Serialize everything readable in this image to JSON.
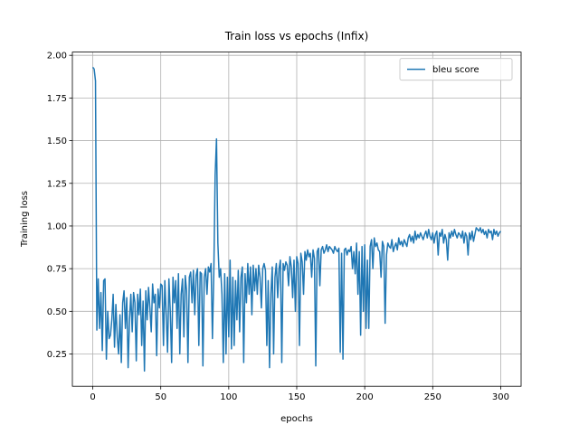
{
  "chart_data": {
    "type": "line",
    "title": "Train loss vs epochs (Infix)",
    "xlabel": "epochs",
    "ylabel": "Training loss",
    "x": [
      0,
      1,
      2,
      3,
      4,
      5,
      6,
      7,
      8,
      9,
      10,
      11,
      12,
      13,
      14,
      15,
      16,
      17,
      18,
      19,
      20,
      21,
      22,
      23,
      24,
      25,
      26,
      27,
      28,
      29,
      30,
      31,
      32,
      33,
      34,
      35,
      36,
      37,
      38,
      39,
      40,
      41,
      42,
      43,
      44,
      45,
      46,
      47,
      48,
      49,
      50,
      51,
      52,
      53,
      54,
      55,
      56,
      57,
      58,
      59,
      60,
      61,
      62,
      63,
      64,
      65,
      66,
      67,
      68,
      69,
      70,
      71,
      72,
      73,
      74,
      75,
      76,
      77,
      78,
      79,
      80,
      81,
      82,
      83,
      84,
      85,
      86,
      87,
      88,
      89,
      90,
      91,
      92,
      93,
      94,
      95,
      96,
      97,
      98,
      99,
      100,
      101,
      102,
      103,
      104,
      105,
      106,
      107,
      108,
      109,
      110,
      111,
      112,
      113,
      114,
      115,
      116,
      117,
      118,
      119,
      120,
      121,
      122,
      123,
      124,
      125,
      126,
      127,
      128,
      129,
      130,
      131,
      132,
      133,
      134,
      135,
      136,
      137,
      138,
      139,
      140,
      141,
      142,
      143,
      144,
      145,
      146,
      147,
      148,
      149,
      150,
      151,
      152,
      153,
      154,
      155,
      156,
      157,
      158,
      159,
      160,
      161,
      162,
      163,
      164,
      165,
      166,
      167,
      168,
      169,
      170,
      171,
      172,
      173,
      174,
      175,
      176,
      177,
      178,
      179,
      180,
      181,
      182,
      183,
      184,
      185,
      186,
      187,
      188,
      189,
      190,
      191,
      192,
      193,
      194,
      195,
      196,
      197,
      198,
      199,
      200,
      201,
      202,
      203,
      204,
      205,
      206,
      207,
      208,
      209,
      210,
      211,
      212,
      213,
      214,
      215,
      216,
      217,
      218,
      219,
      220,
      221,
      222,
      223,
      224,
      225,
      226,
      227,
      228,
      229,
      230,
      231,
      232,
      233,
      234,
      235,
      236,
      237,
      238,
      239,
      240,
      241,
      242,
      243,
      244,
      245,
      246,
      247,
      248,
      249,
      250,
      251,
      252,
      253,
      254,
      255,
      256,
      257,
      258,
      259,
      260,
      261,
      262,
      263,
      264,
      265,
      266,
      267,
      268,
      269,
      270,
      271,
      272,
      273,
      274,
      275,
      276,
      277,
      278,
      279,
      280,
      281,
      282,
      283,
      284,
      285,
      286,
      287,
      288,
      289,
      290,
      291,
      292,
      293,
      294,
      295,
      296,
      297,
      298,
      299,
      300
    ],
    "series": [
      {
        "name": "bleu score",
        "color": "#1f77b4",
        "values": [
          1.93,
          1.92,
          1.85,
          0.39,
          0.69,
          0.4,
          0.61,
          0.27,
          0.68,
          0.69,
          0.22,
          0.5,
          0.34,
          0.36,
          0.45,
          0.6,
          0.29,
          0.54,
          0.35,
          0.25,
          0.48,
          0.2,
          0.55,
          0.62,
          0.4,
          0.58,
          0.17,
          0.45,
          0.6,
          0.38,
          0.61,
          0.55,
          0.21,
          0.6,
          0.48,
          0.63,
          0.3,
          0.56,
          0.15,
          0.62,
          0.45,
          0.64,
          0.52,
          0.38,
          0.66,
          0.55,
          0.6,
          0.24,
          0.63,
          0.52,
          0.66,
          0.65,
          0.3,
          0.68,
          0.48,
          0.26,
          0.69,
          0.5,
          0.2,
          0.7,
          0.55,
          0.68,
          0.4,
          0.72,
          0.25,
          0.6,
          0.69,
          0.35,
          0.71,
          0.62,
          0.2,
          0.7,
          0.73,
          0.55,
          0.74,
          0.48,
          0.71,
          0.75,
          0.3,
          0.73,
          0.72,
          0.18,
          0.7,
          0.75,
          0.6,
          0.76,
          0.73,
          0.78,
          0.34,
          0.72,
          1.3,
          1.51,
          0.9,
          0.7,
          0.75,
          0.6,
          0.2,
          0.72,
          0.25,
          0.7,
          0.35,
          0.8,
          0.28,
          0.7,
          0.3,
          0.68,
          0.45,
          0.74,
          0.38,
          0.7,
          0.76,
          0.2,
          0.72,
          0.55,
          0.78,
          0.6,
          0.76,
          0.48,
          0.77,
          0.62,
          0.75,
          0.6,
          0.77,
          0.7,
          0.52,
          0.75,
          0.78,
          0.74,
          0.3,
          0.68,
          0.17,
          0.6,
          0.76,
          0.25,
          0.7,
          0.78,
          0.58,
          0.75,
          0.8,
          0.2,
          0.78,
          0.74,
          0.79,
          0.77,
          0.65,
          0.82,
          0.76,
          0.58,
          0.8,
          0.5,
          0.82,
          0.78,
          0.3,
          0.84,
          0.79,
          0.6,
          0.85,
          0.8,
          0.86,
          0.82,
          0.84,
          0.7,
          0.86,
          0.81,
          0.18,
          0.85,
          0.87,
          0.65,
          0.86,
          0.88,
          0.84,
          0.86,
          0.89,
          0.85,
          0.88,
          0.87,
          0.86,
          0.84,
          0.88,
          0.86,
          0.85,
          0.87,
          0.26,
          0.84,
          0.22,
          0.86,
          0.87,
          0.83,
          0.86,
          0.85,
          0.88,
          0.75,
          0.85,
          0.72,
          0.9,
          0.6,
          0.85,
          0.36,
          0.88,
          0.5,
          0.89,
          0.4,
          0.8,
          0.4,
          0.88,
          0.92,
          0.75,
          0.93,
          0.88,
          0.9,
          0.86,
          0.85,
          0.7,
          0.91,
          0.88,
          0.43,
          0.83,
          0.9,
          0.88,
          0.87,
          0.92,
          0.85,
          0.88,
          0.9,
          0.86,
          0.93,
          0.89,
          0.91,
          0.88,
          0.92,
          0.9,
          0.88,
          0.93,
          0.95,
          0.91,
          0.94,
          0.9,
          0.97,
          0.92,
          0.95,
          0.93,
          0.96,
          0.94,
          0.92,
          0.95,
          0.97,
          0.93,
          0.98,
          0.94,
          0.92,
          0.96,
          0.9,
          0.95,
          0.97,
          0.83,
          0.96,
          0.94,
          0.98,
          0.9,
          0.95,
          0.92,
          0.8,
          0.96,
          0.93,
          0.97,
          0.94,
          0.98,
          0.95,
          0.93,
          0.96,
          0.95,
          0.93,
          0.97,
          0.9,
          0.96,
          0.94,
          0.83,
          0.96,
          0.92,
          0.97,
          0.91,
          0.95,
          0.99,
          0.98,
          0.97,
          0.99,
          0.96,
          0.98,
          0.95,
          0.97,
          0.93,
          0.98,
          0.96,
          0.97,
          0.92,
          0.98,
          0.95,
          0.97,
          0.94,
          0.96,
          0.97
        ]
      }
    ],
    "xlim": [
      -15,
      315
    ],
    "xticks": [
      0,
      50,
      100,
      150,
      200,
      250,
      300
    ],
    "ylim": [
      0.061,
      2.019
    ],
    "yticks": [
      {
        "value": 0.25,
        "label": "0.25"
      },
      {
        "value": 0.5,
        "label": "0.50"
      },
      {
        "value": 0.75,
        "label": "0.75"
      },
      {
        "value": 1,
        "label": "1.00"
      },
      {
        "value": 1.25,
        "label": "1.25"
      },
      {
        "value": 1.5,
        "label": "1.50"
      },
      {
        "value": 1.75,
        "label": "1.75"
      },
      {
        "value": 2,
        "label": "2.00"
      }
    ],
    "grid": true,
    "legend": "upper right"
  }
}
